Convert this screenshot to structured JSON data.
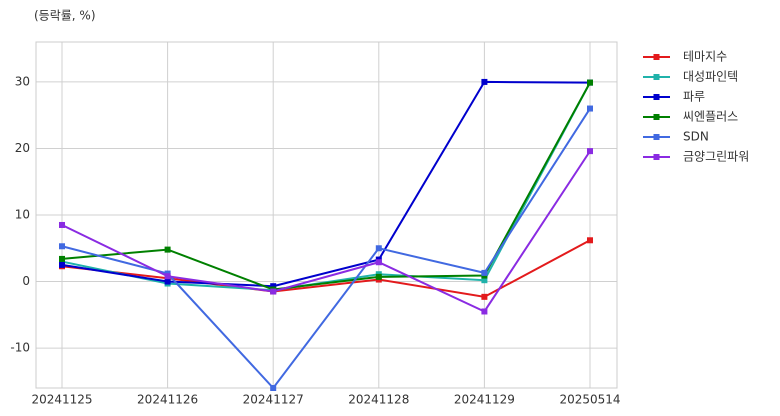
{
  "chart_data": {
    "type": "line",
    "y_label": "(등락률, %)",
    "categories": [
      "20241125",
      "20241126",
      "20241127",
      "20241128",
      "20241129",
      "20250514"
    ],
    "series": [
      {
        "name": "테마지수",
        "color": "#e31a1c",
        "values": [
          2.3,
          0.5,
          -1.5,
          0.3,
          -2.3,
          6.2
        ]
      },
      {
        "name": "대성파인텍",
        "color": "#20b2aa",
        "values": [
          3.0,
          -0.3,
          -1.3,
          1.1,
          0.2,
          29.9
        ]
      },
      {
        "name": "파루",
        "color": "#0000cd",
        "values": [
          2.5,
          0.0,
          -0.7,
          3.3,
          30.0,
          29.9
        ]
      },
      {
        "name": "씨엔플러스",
        "color": "#008000",
        "values": [
          3.4,
          4.8,
          -1.2,
          0.7,
          0.9,
          29.9
        ]
      },
      {
        "name": "SDN",
        "color": "#4169e1",
        "values": [
          5.3,
          1.2,
          -16.0,
          5.0,
          1.3,
          26.0
        ]
      },
      {
        "name": "금양그린파워",
        "color": "#8a2be2",
        "values": [
          8.5,
          0.8,
          -1.5,
          2.9,
          -4.5,
          19.6
        ]
      }
    ],
    "ylim": [
      -16,
      36
    ],
    "yticks": [
      -10,
      0,
      10,
      20,
      30
    ],
    "grid": true,
    "legend": "right"
  }
}
